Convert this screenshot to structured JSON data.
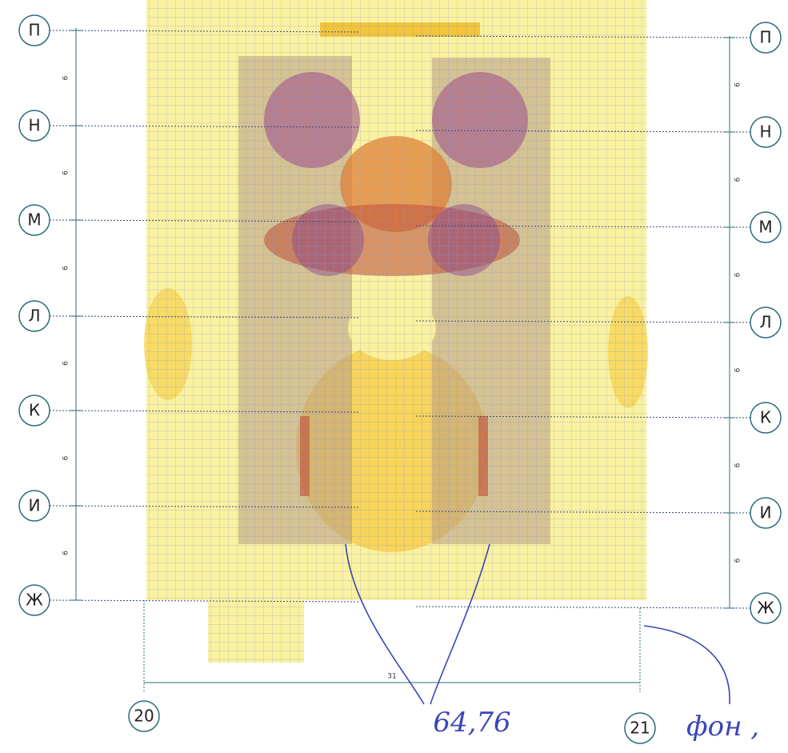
{
  "axes_left": [
    "П",
    "Н",
    "М",
    "Л",
    "К",
    "И",
    "Ж"
  ],
  "axes_right": [
    "П",
    "Н",
    "М",
    "Л",
    "К",
    "И",
    "Ж"
  ],
  "axes_bottom": [
    "20",
    "21"
  ],
  "dimension_bottom": "31",
  "dimensions_left": [
    "6",
    "6",
    "6",
    "6",
    "6",
    "6"
  ],
  "dimensions_right": [
    "6",
    "6",
    "6",
    "6",
    "6",
    "6"
  ],
  "annotations": [
    "64,76",
    "фон ,"
  ]
}
